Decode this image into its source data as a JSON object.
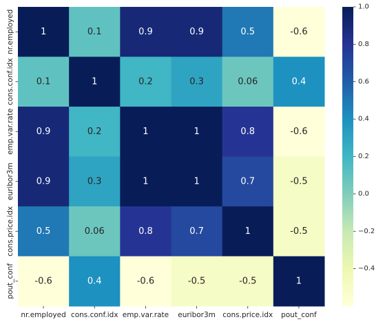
{
  "chart_data": {
    "type": "heatmap",
    "title": "",
    "xlabel": "",
    "ylabel": "",
    "colormap": "YlGnBu",
    "colormap_stops": [
      "#ffffd9",
      "#edf8b1",
      "#c7e9b4",
      "#7fcdbb",
      "#41b6c4",
      "#1d91c0",
      "#225ea8",
      "#253494",
      "#081d58"
    ],
    "vmin": -0.6,
    "vmax": 1.0,
    "x_categories": [
      "nr.employed",
      "cons.conf.idx",
      "emp.var.rate",
      "euribor3m",
      "cons.price.idx",
      "pout_conf"
    ],
    "y_categories": [
      "nr.employed",
      "cons.conf.idx",
      "emp.var.rate",
      "euribor3m",
      "cons.price.idx",
      "pout_conf"
    ],
    "values": [
      [
        1,
        0.1,
        0.9,
        0.9,
        0.5,
        -0.6
      ],
      [
        0.1,
        1,
        0.2,
        0.3,
        0.06,
        0.4
      ],
      [
        0.9,
        0.2,
        1,
        1,
        0.8,
        -0.6
      ],
      [
        0.9,
        0.3,
        1,
        1,
        0.7,
        -0.5
      ],
      [
        0.5,
        0.06,
        0.8,
        0.7,
        1,
        -0.5
      ],
      [
        -0.6,
        0.4,
        -0.6,
        -0.5,
        -0.5,
        1
      ]
    ],
    "cell_labels": [
      [
        "1",
        "0.1",
        "0.9",
        "0.9",
        "0.5",
        "-0.6"
      ],
      [
        "0.1",
        "1",
        "0.2",
        "0.3",
        "0.06",
        "0.4"
      ],
      [
        "0.9",
        "0.2",
        "1",
        "1",
        "0.8",
        "-0.6"
      ],
      [
        "0.9",
        "0.3",
        "1",
        "1",
        "0.7",
        "-0.5"
      ],
      [
        "0.5",
        "0.06",
        "0.8",
        "0.7",
        "1",
        "-0.5"
      ],
      [
        "-0.6",
        "0.4",
        "-0.6",
        "-0.5",
        "-0.5",
        "1"
      ]
    ],
    "colorbar": {
      "ticks": [
        -0.4,
        -0.2,
        0.0,
        0.2,
        0.4,
        0.6,
        0.8,
        1.0
      ],
      "tick_labels": [
        "−0.4",
        "−0.2",
        "0.0",
        "0.2",
        "0.4",
        "0.6",
        "0.8",
        "1.0"
      ]
    },
    "grid": false,
    "legend": "colorbar-right"
  }
}
